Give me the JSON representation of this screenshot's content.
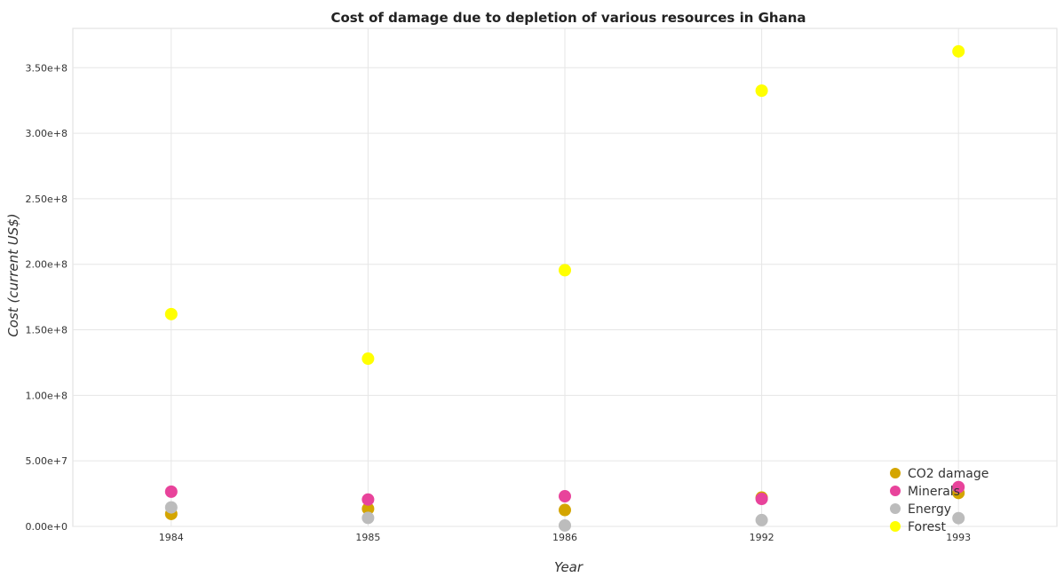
{
  "chart_data": {
    "type": "scatter",
    "title": "Cost of damage due to depletion of various resources in Ghana",
    "xlabel": "Year",
    "ylabel": "Cost (current US$)",
    "categories": [
      "1984",
      "1985",
      "1986",
      "1992",
      "1993"
    ],
    "ylim": [
      0,
      380000000
    ],
    "yticks": [
      0,
      50000000,
      100000000,
      150000000,
      200000000,
      250000000,
      300000000,
      350000000
    ],
    "ytick_labels": [
      "0.00e+0",
      "5.00e+7",
      "1.00e+8",
      "1.50e+8",
      "2.00e+8",
      "2.50e+8",
      "3.00e+8",
      "3.50e+8"
    ],
    "grid": true,
    "legend_position": "bottom-right",
    "series": [
      {
        "name": "CO2 damage",
        "color": "#d4a500",
        "values": [
          9500000,
          13500000,
          12500000,
          22000000,
          25500000
        ]
      },
      {
        "name": "Minerals",
        "color": "#e8439b",
        "values": [
          26500000,
          20500000,
          23000000,
          21000000,
          30000000
        ]
      },
      {
        "name": "Energy",
        "color": "#bcbcbc",
        "values": [
          14500000,
          6500000,
          700000,
          4800000,
          6300000
        ]
      },
      {
        "name": "Forest",
        "color": "#ffff00",
        "values": [
          162000000,
          128000000,
          195500000,
          332500000,
          362500000
        ]
      }
    ]
  }
}
